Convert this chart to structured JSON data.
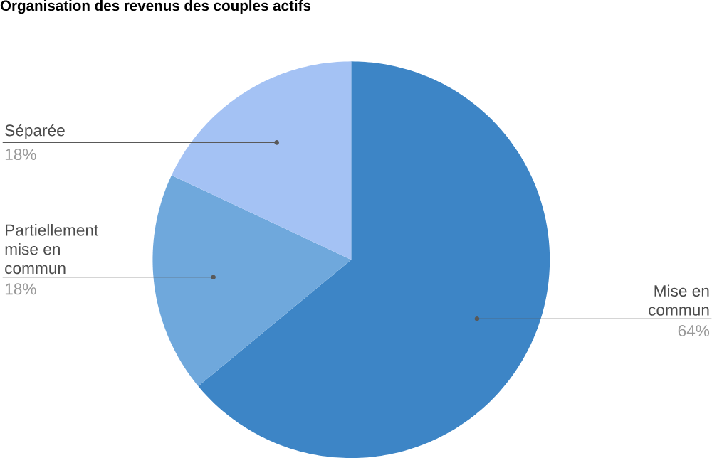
{
  "chart_data": {
    "type": "pie",
    "title": "Organisation des revenus des couples actifs",
    "categories": [
      "Mise en commun",
      "Partiellement mise en commun",
      "Séparée"
    ],
    "values": [
      64,
      18,
      18
    ],
    "value_labels": [
      "64%",
      "18%",
      "18%"
    ],
    "colors": [
      "#3d85c6",
      "#6fa8dc",
      "#a4c2f4"
    ]
  }
}
